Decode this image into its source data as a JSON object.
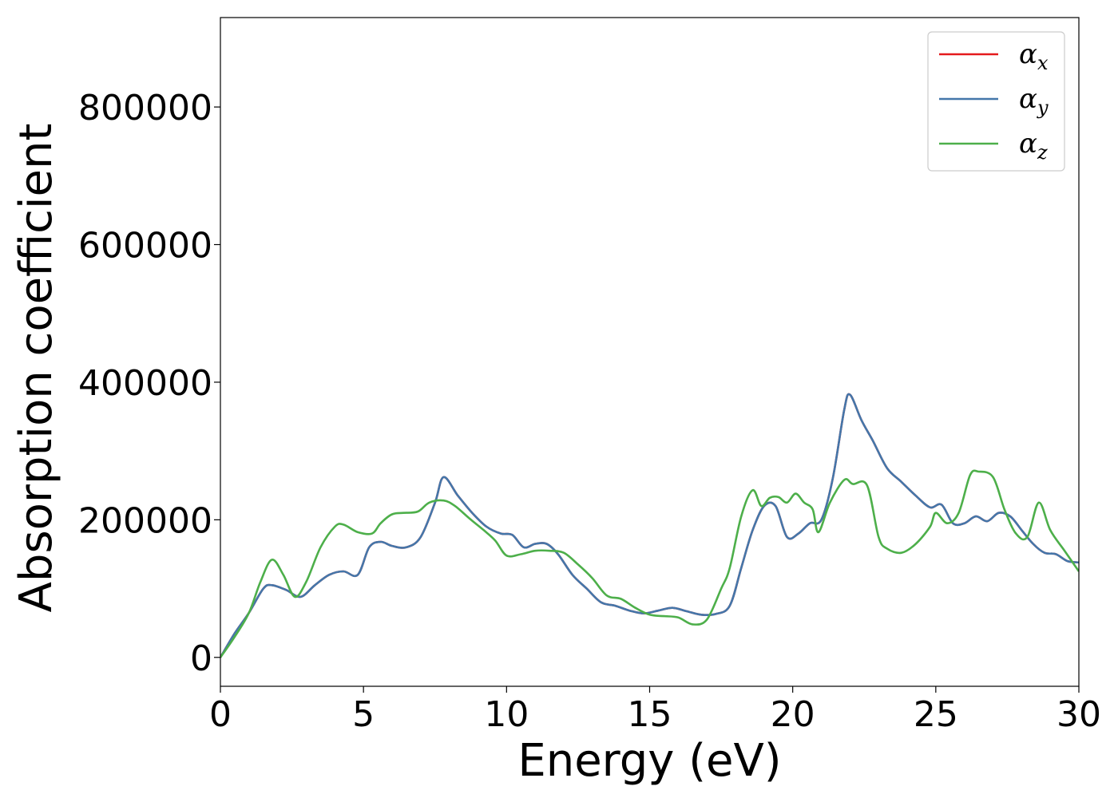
{
  "chart_data": {
    "type": "line",
    "xlabel": "Energy (eV)",
    "ylabel": "Absorption coefficient",
    "xlim": [
      0,
      30
    ],
    "ylim": [
      -42000,
      930000
    ],
    "xticks": [
      0,
      5,
      10,
      15,
      20,
      25,
      30
    ],
    "xtick_labels": [
      "0",
      "5",
      "10",
      "15",
      "20",
      "25",
      "30"
    ],
    "yticks": [
      0,
      200000,
      400000,
      600000,
      800000
    ],
    "ytick_labels": [
      "0",
      "200000",
      "400000",
      "600000",
      "800000"
    ],
    "grid": false,
    "legend_position": "top-right",
    "series": [
      {
        "name": "αx",
        "symbol": "α",
        "subscript": "x",
        "color": "#e41a1c",
        "x": [
          0,
          0.5,
          1,
          1.5,
          1.8,
          2.3,
          2.8,
          3.3,
          3.8,
          4.3,
          4.8,
          5.2,
          5.6,
          6,
          6.5,
          7,
          7.5,
          7.8,
          8.3,
          8.8,
          9.3,
          9.8,
          10.2,
          10.6,
          11,
          11.4,
          11.8,
          12.3,
          12.8,
          13.3,
          13.8,
          14.3,
          14.8,
          15.3,
          15.8,
          16.3,
          16.8,
          17.3,
          17.8,
          18.2,
          18.6,
          19,
          19.4,
          19.8,
          20.2,
          20.6,
          21,
          21.4,
          21.8,
          22,
          22.4,
          22.8,
          23.3,
          23.8,
          24.3,
          24.8,
          25.2,
          25.6,
          26,
          26.4,
          26.8,
          27.2,
          27.6,
          28,
          28.4,
          28.8,
          29.2,
          29.6,
          30
        ],
        "y": [
          0,
          35000,
          65000,
          100000,
          105000,
          98000,
          88000,
          105000,
          120000,
          125000,
          120000,
          160000,
          168000,
          162000,
          160000,
          175000,
          225000,
          262000,
          235000,
          210000,
          190000,
          180000,
          178000,
          160000,
          165000,
          165000,
          150000,
          120000,
          100000,
          80000,
          75000,
          68000,
          64000,
          68000,
          72000,
          67000,
          62000,
          63000,
          75000,
          130000,
          185000,
          220000,
          220000,
          175000,
          180000,
          195000,
          200000,
          260000,
          360000,
          382000,
          345000,
          315000,
          275000,
          255000,
          235000,
          218000,
          222000,
          195000,
          195000,
          205000,
          198000,
          210000,
          205000,
          185000,
          165000,
          152000,
          150000,
          140000,
          138000
        ]
      },
      {
        "name": "αy",
        "symbol": "α",
        "subscript": "y",
        "color": "#4477aa",
        "x": [
          0,
          0.5,
          1,
          1.5,
          1.8,
          2.3,
          2.8,
          3.3,
          3.8,
          4.3,
          4.8,
          5.2,
          5.6,
          6,
          6.5,
          7,
          7.5,
          7.8,
          8.3,
          8.8,
          9.3,
          9.8,
          10.2,
          10.6,
          11,
          11.4,
          11.8,
          12.3,
          12.8,
          13.3,
          13.8,
          14.3,
          14.8,
          15.3,
          15.8,
          16.3,
          16.8,
          17.3,
          17.8,
          18.2,
          18.6,
          19,
          19.4,
          19.8,
          20.2,
          20.6,
          21,
          21.4,
          21.8,
          22,
          22.4,
          22.8,
          23.3,
          23.8,
          24.3,
          24.8,
          25.2,
          25.6,
          26,
          26.4,
          26.8,
          27.2,
          27.6,
          28,
          28.4,
          28.8,
          29.2,
          29.6,
          30
        ],
        "y": [
          0,
          35000,
          65000,
          100000,
          105000,
          98000,
          88000,
          105000,
          120000,
          125000,
          120000,
          160000,
          168000,
          162000,
          160000,
          175000,
          225000,
          262000,
          235000,
          210000,
          190000,
          180000,
          178000,
          160000,
          165000,
          165000,
          150000,
          120000,
          100000,
          80000,
          75000,
          68000,
          64000,
          68000,
          72000,
          67000,
          62000,
          63000,
          75000,
          130000,
          185000,
          220000,
          220000,
          175000,
          180000,
          195000,
          200000,
          260000,
          360000,
          382000,
          345000,
          315000,
          275000,
          255000,
          235000,
          218000,
          222000,
          195000,
          195000,
          205000,
          198000,
          210000,
          205000,
          185000,
          165000,
          152000,
          150000,
          140000,
          138000
        ]
      },
      {
        "name": "αz",
        "symbol": "α",
        "subscript": "z",
        "color": "#4daf4a",
        "x": [
          0,
          0.5,
          1,
          1.4,
          1.8,
          2.2,
          2.6,
          3,
          3.5,
          4,
          4.3,
          4.8,
          5.3,
          5.6,
          6,
          6.4,
          6.9,
          7.3,
          7.8,
          8.2,
          8.7,
          9.2,
          9.6,
          10,
          10.5,
          11,
          11.5,
          12,
          12.5,
          13,
          13.5,
          14,
          14.5,
          15,
          15.5,
          16,
          16.5,
          17,
          17.5,
          17.8,
          18.2,
          18.6,
          18.9,
          19.2,
          19.5,
          19.8,
          20.1,
          20.4,
          20.7,
          20.9,
          21.3,
          21.8,
          22.1,
          22.6,
          23,
          23.3,
          23.8,
          24.3,
          24.8,
          25,
          25.4,
          25.8,
          26.2,
          26.5,
          27,
          27.4,
          27.8,
          28.2,
          28.6,
          29,
          29.5,
          30
        ],
        "y": [
          0,
          30000,
          65000,
          110000,
          142000,
          120000,
          88000,
          110000,
          160000,
          190000,
          193000,
          182000,
          180000,
          195000,
          208000,
          210000,
          212000,
          225000,
          228000,
          220000,
          202000,
          185000,
          170000,
          148000,
          150000,
          155000,
          155000,
          152000,
          135000,
          115000,
          90000,
          85000,
          72000,
          62000,
          60000,
          58000,
          48000,
          55000,
          100000,
          130000,
          205000,
          243000,
          220000,
          232000,
          233000,
          225000,
          238000,
          225000,
          215000,
          182000,
          225000,
          258000,
          252000,
          250000,
          175000,
          158000,
          152000,
          165000,
          190000,
          210000,
          195000,
          210000,
          265000,
          270000,
          262000,
          215000,
          180000,
          175000,
          225000,
          185000,
          155000,
          125000
        ]
      }
    ]
  }
}
